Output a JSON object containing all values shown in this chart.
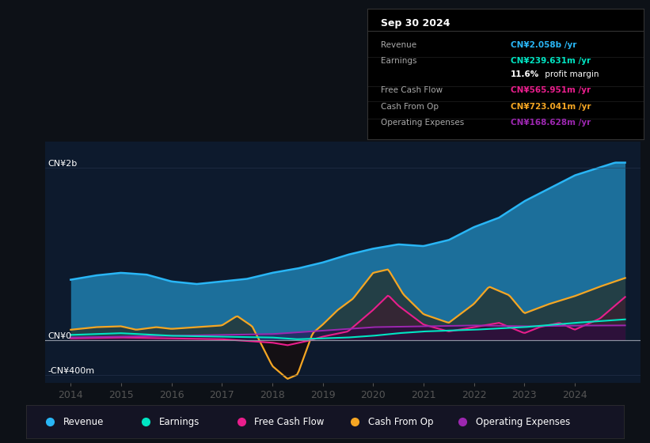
{
  "bg_color": "#0d1117",
  "chart_bg": "#0d1a2d",
  "colors": {
    "revenue": "#29b6f6",
    "earnings": "#00e5c3",
    "free_cash_flow": "#e91e8c",
    "cash_from_op": "#f5a623",
    "operating_expenses": "#9c27b0"
  },
  "info_box": {
    "title": "Sep 30 2024",
    "rows": [
      {
        "label": "Revenue",
        "value": "CN¥2.058b /yr",
        "color": "#29b6f6"
      },
      {
        "label": "Earnings",
        "value": "CN¥239.631m /yr",
        "color": "#00e5c3"
      },
      {
        "label": "",
        "value": "11.6% profit margin",
        "color": "#ffffff"
      },
      {
        "label": "Free Cash Flow",
        "value": "CN¥565.951m /yr",
        "color": "#e91e8c"
      },
      {
        "label": "Cash From Op",
        "value": "CN¥723.041m /yr",
        "color": "#f5a623"
      },
      {
        "label": "Operating Expenses",
        "value": "CN¥168.628m /yr",
        "color": "#9c27b0"
      }
    ]
  },
  "legend": [
    {
      "label": "Revenue",
      "color": "#29b6f6"
    },
    {
      "label": "Earnings",
      "color": "#00e5c3"
    },
    {
      "label": "Free Cash Flow",
      "color": "#e91e8c"
    },
    {
      "label": "Cash From Op",
      "color": "#f5a623"
    },
    {
      "label": "Operating Expenses",
      "color": "#9c27b0"
    }
  ],
  "ylim": [
    -500000000,
    2300000000
  ],
  "xlim": [
    2013.5,
    2025.3
  ],
  "ytick_labels": [
    "CN¥2b",
    "CN¥0",
    "-CN¥400m"
  ],
  "ytick_values": [
    2000000000,
    0,
    -400000000
  ],
  "years": [
    2014,
    2015,
    2016,
    2017,
    2018,
    2019,
    2020,
    2021,
    2022,
    2023,
    2024
  ]
}
